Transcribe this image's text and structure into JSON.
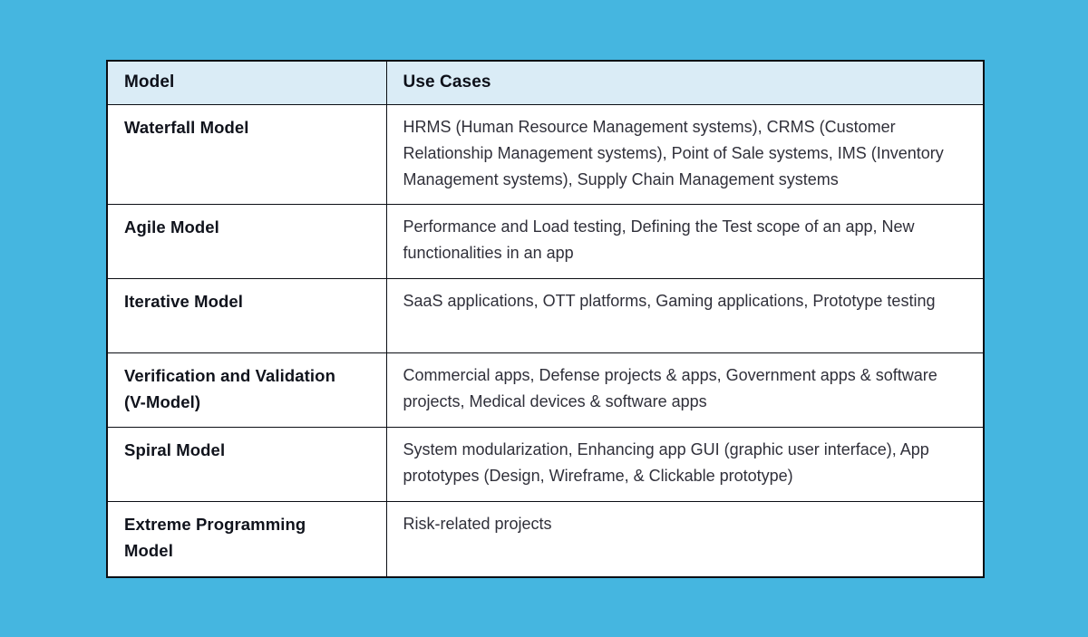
{
  "page": {
    "background_color": "#45B6E0"
  },
  "table": {
    "border_color": "#0B0E14",
    "header": {
      "background_color": "#DAECF6",
      "model_label": "Model",
      "use_cases_label": "Use Cases"
    },
    "rows": [
      {
        "model": "Waterfall Model",
        "use_cases": "HRMS (Human Resource Management systems), CRMS (Customer Relationship Management systems), Point of Sale systems, IMS (Inventory Management systems), Supply Chain Management systems"
      },
      {
        "model": "Agile Model",
        "use_cases": "Performance and Load testing, Defining the Test scope of an app, New functionalities in an app"
      },
      {
        "model": "Iterative Model",
        "use_cases": "SaaS applications, OTT platforms, Gaming applications, Prototype testing"
      },
      {
        "model": "Verification and Validation\n(V-Model)",
        "use_cases": "Commercial apps, Defense projects & apps, Government apps & software projects, Medical devices & software apps"
      },
      {
        "model": "Spiral Model",
        "use_cases": "System modularization, Enhancing app GUI (graphic user interface), App prototypes (Design, Wireframe, & Clickable prototype)"
      },
      {
        "model": "Extreme Programming\nModel",
        "use_cases": "Risk-related projects"
      }
    ]
  }
}
